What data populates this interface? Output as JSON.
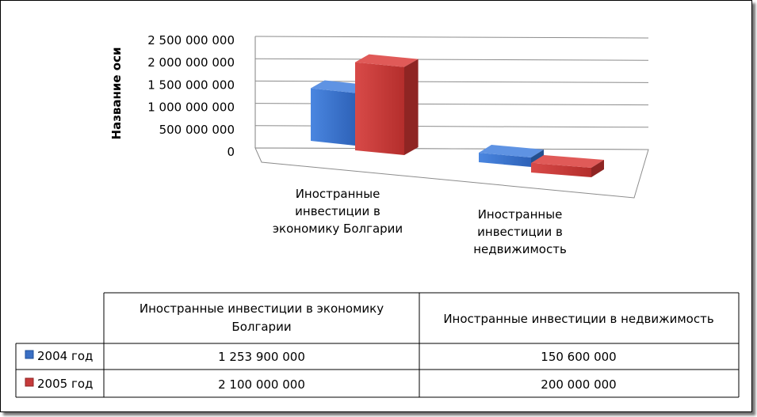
{
  "chart_data": {
    "type": "bar",
    "ylabel": "Название оси",
    "ylim": [
      0,
      2500000000
    ],
    "y_ticks": [
      "2 500 000 000",
      "2 000 000 000",
      "1 500 000 000",
      "1 000 000 000",
      "500 000 000",
      "0"
    ],
    "y_tick_values": [
      2500000000,
      2000000000,
      1500000000,
      1000000000,
      500000000,
      0
    ],
    "categories": [
      "Иностранные инвестиции в экономику Болгарии",
      "Иностранные инвестиции в недвижимость"
    ],
    "category_lines": [
      [
        "Иностранные",
        "инвестиции в",
        "экономику Болгарии"
      ],
      [
        "Иностранные",
        "инвестиции в",
        "недвижимость"
      ]
    ],
    "series": [
      {
        "name": "2004 год",
        "values": [
          1253900000,
          150600000
        ],
        "color": "#3a6fc4"
      },
      {
        "name": "2005 год",
        "values": [
          2100000000,
          200000000
        ],
        "color": "#c63a3a"
      }
    ],
    "grid": true,
    "legend": "data-table"
  },
  "table": {
    "headers": [
      [
        "Иностранные инвестиции в экономику",
        "Болгарии"
      ],
      [
        "Иностранные инвестиции в недвижимость"
      ]
    ],
    "rows": [
      {
        "label": "2004 год",
        "cells": [
          "1 253 900 000",
          "150 600 000"
        ]
      },
      {
        "label": "2005 год",
        "cells": [
          "2 100 000 000",
          "200 000 000"
        ]
      }
    ]
  }
}
